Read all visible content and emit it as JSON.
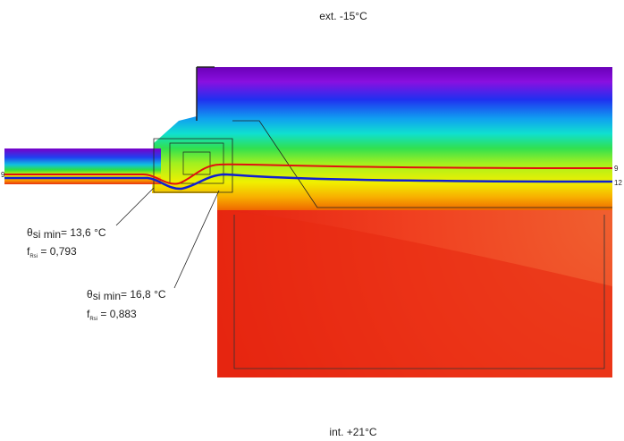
{
  "labels": {
    "exterior": "ext. -15°C",
    "interior": "int. +21°C"
  },
  "isotherms": [
    {
      "label": "9"
    },
    {
      "label": "9"
    },
    {
      "label": "12"
    }
  ],
  "annotations": [
    {
      "theta": "θ",
      "theta_sub": "si min",
      "theta_text": "= 13,6 °C",
      "f": "f",
      "f_sub": "Rsi",
      "f_text": " = 0,793"
    },
    {
      "theta": "θ",
      "theta_sub": "si min",
      "theta_text": "= 16,8 °C",
      "f": "f",
      "f_sub": "Rsi",
      "f_text": " = 0,883"
    }
  ]
}
